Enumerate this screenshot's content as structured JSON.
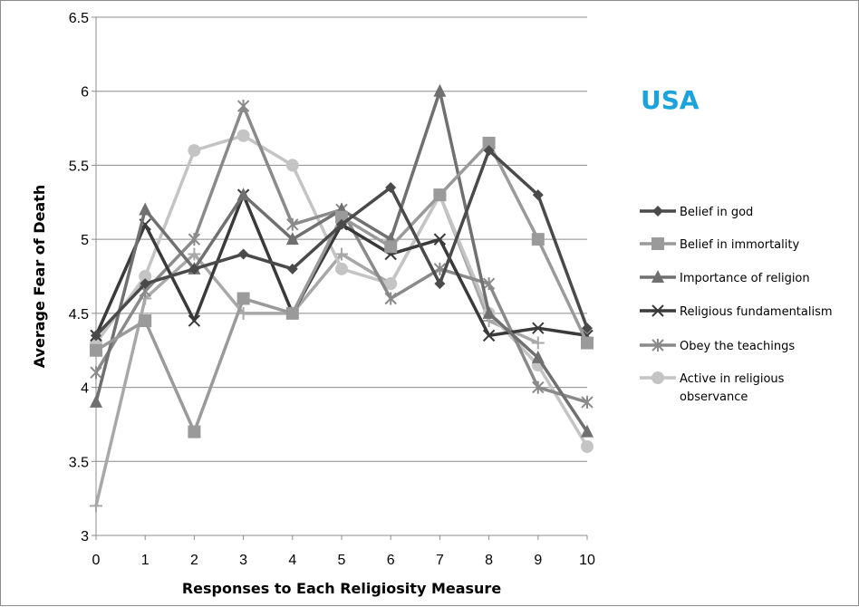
{
  "chart_data": {
    "type": "line",
    "title": "USA",
    "title_color": "#1aa3dc",
    "xlabel": "Responses to Each Religiosity Measure",
    "ylabel": "Average Fear of Death",
    "x": [
      0,
      1,
      2,
      3,
      4,
      5,
      6,
      7,
      8,
      9,
      10
    ],
    "xlim": [
      0,
      10
    ],
    "ylim": [
      3,
      6.5
    ],
    "y_ticks": [
      3,
      3.5,
      4,
      4.5,
      5,
      5.5,
      6,
      6.5
    ],
    "y_tick_labels": [
      "3",
      "3.5",
      "4",
      "4.5",
      "5",
      "5.5",
      "6",
      "6.5"
    ],
    "x_tick_labels": [
      "0",
      "1",
      "2",
      "3",
      "4",
      "5",
      "6",
      "7",
      "8",
      "9",
      "10"
    ],
    "grid": "horizontal",
    "legend_position": "right",
    "series": [
      {
        "name": "Belief in god",
        "marker": "diamond",
        "color": "#4a4a4a",
        "values": [
          4.35,
          4.7,
          4.8,
          4.9,
          4.8,
          5.1,
          5.35,
          4.7,
          5.6,
          5.3,
          4.4
        ]
      },
      {
        "name": "Belief in immortality",
        "marker": "square",
        "color": "#9a9a9a",
        "values": [
          4.25,
          4.45,
          3.7,
          4.6,
          4.5,
          5.15,
          4.95,
          5.3,
          5.65,
          5.0,
          4.3
        ]
      },
      {
        "name": "Importance of religion",
        "marker": "triangle",
        "color": "#707070",
        "values": [
          3.9,
          5.2,
          4.8,
          5.3,
          5.0,
          5.2,
          5.0,
          6.0,
          4.5,
          4.2,
          3.7
        ]
      },
      {
        "name": "Religious fundamentalism",
        "marker": "x",
        "color": "#3a3a3a",
        "values": [
          4.35,
          5.1,
          4.45,
          5.3,
          4.5,
          5.1,
          4.9,
          5.0,
          4.35,
          4.4,
          4.35
        ]
      },
      {
        "name": "Obey the teachings",
        "marker": "star",
        "color": "#8a8a8a",
        "values": [
          4.1,
          4.65,
          5.0,
          5.9,
          5.1,
          5.2,
          4.6,
          4.8,
          4.7,
          4.0,
          3.9
        ]
      },
      {
        "name": "Active in religious observance",
        "name_lines": [
          "Active in religious",
          "observance"
        ],
        "marker": "circle",
        "color": "#c4c4c4",
        "values": [
          4.3,
          4.75,
          5.6,
          5.7,
          5.5,
          4.8,
          4.7,
          5.3,
          4.5,
          4.15,
          3.6
        ]
      },
      {
        "name": "",
        "marker": "plus",
        "color": "#a8a8a8",
        "values": [
          3.2,
          4.6,
          4.9,
          4.5,
          4.5,
          4.9,
          4.7,
          5.3,
          4.45,
          4.3,
          null
        ]
      }
    ]
  }
}
